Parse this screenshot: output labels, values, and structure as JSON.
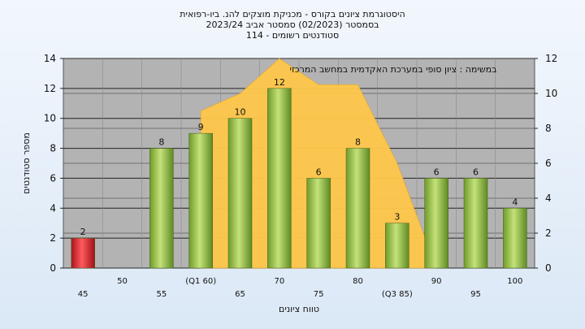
{
  "chart_data": {
    "type": "bar",
    "title_lines": [
      "היסטוגרמת ציונים בקורס - מכניקת מוצקים להנ. ביו-רפואית",
      "בסמסטר    (02/2023)  סמסטר אביב 2023/24",
      "סטודנטים רשומים - 114"
    ],
    "annotation": "במשימה : ציון סופי במערכת האקדמית במחשב המרכזי",
    "xlabel": "טווח ציונים",
    "ylabel": "מספר סטודנטים",
    "categories": [
      "45",
      "50",
      "55",
      "(Q1 60)",
      "65",
      "70",
      "75",
      "80",
      "(Q3 85)",
      "90",
      "95",
      "100"
    ],
    "values": [
      2,
      0,
      8,
      9,
      10,
      12,
      6,
      8,
      3,
      6,
      6,
      4
    ],
    "data_labels": [
      "2",
      "",
      "8",
      "9",
      "10",
      "12",
      "6",
      "8",
      "3",
      "6",
      "6",
      "4"
    ],
    "bar_colors": [
      "#e0242c",
      "#8fbe3c",
      "#8fbe3c",
      "#8fbe3c",
      "#8fbe3c",
      "#8fbe3c",
      "#8fbe3c",
      "#8fbe3c",
      "#8fbe3c",
      "#8fbe3c",
      "#8fbe3c",
      "#8fbe3c"
    ],
    "area_series": {
      "color": "#ffc84a",
      "x": [
        "(Q1 60)",
        "65",
        "70",
        "75",
        "80",
        "(Q3 85)",
        "90"
      ],
      "values": [
        9,
        10,
        12,
        10.5,
        10.5,
        6,
        0
      ]
    },
    "ylim_left": [
      0,
      14
    ],
    "yticks_left": [
      0,
      2,
      4,
      6,
      8,
      10,
      12,
      14
    ],
    "ylim_right": [
      0,
      12
    ],
    "yticks_right": [
      0,
      2,
      4,
      6,
      8,
      10,
      12
    ],
    "grid": true,
    "plot_background": "#b3b3b3"
  }
}
